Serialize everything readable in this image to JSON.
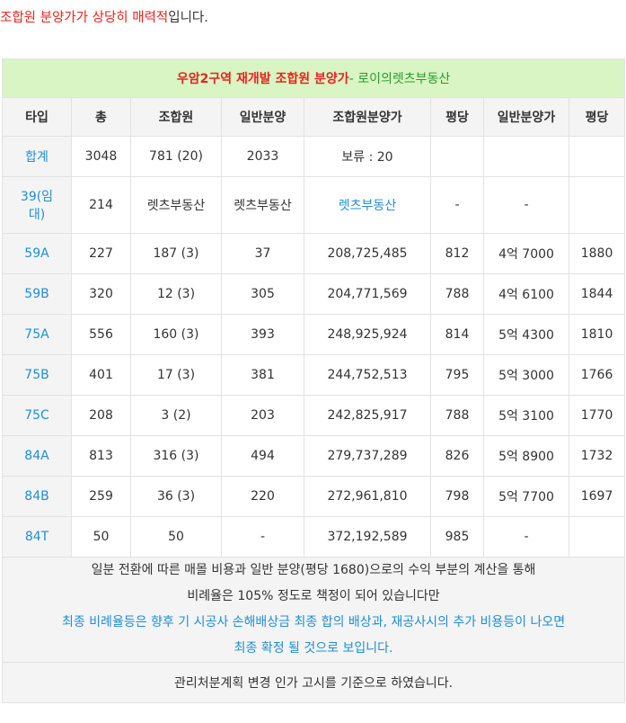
{
  "intro": {
    "part1": "조합원 분양가가 상당히 매력적",
    "part2": "입니다."
  },
  "table": {
    "title_main": "우암2구역 재개발 조합원 분양가",
    "title_sub": "- 로이의렛츠부동산",
    "headers": [
      "타입",
      "총",
      "조합원",
      "일반분양",
      "조합원분양가",
      "평당",
      "일반분양가",
      "평당"
    ],
    "rows": [
      [
        "합계",
        "3048",
        "781 (20)",
        "2033",
        "보류 : 20",
        "",
        "",
        ""
      ],
      [
        "39(임대)",
        "214",
        "렛츠부동산",
        "렛츠부동산",
        "렛츠부동산",
        "-",
        "-",
        ""
      ],
      [
        "59A",
        "227",
        "187 (3)",
        "37",
        "208,725,485",
        "812",
        "4억 7000",
        "1880"
      ],
      [
        "59B",
        "320",
        "12 (3)",
        "305",
        "204,771,569",
        "788",
        "4억 6100",
        "1844"
      ],
      [
        "75A",
        "556",
        "160 (3)",
        "393",
        "248,925,924",
        "814",
        "5억 4300",
        "1810"
      ],
      [
        "75B",
        "401",
        "17 (3)",
        "381",
        "244,752,513",
        "795",
        "5억 3000",
        "1766"
      ],
      [
        "75C",
        "208",
        "3 (2)",
        "203",
        "242,825,917",
        "788",
        "5억 3100",
        "1770"
      ],
      [
        "84A",
        "813",
        "316 (3)",
        "494",
        "279,737,289",
        "826",
        "5억 8900",
        "1732"
      ],
      [
        "84B",
        "259",
        "36 (3)",
        "220",
        "272,961,810",
        "798",
        "5억 7700",
        "1697"
      ],
      [
        "84T",
        "50",
        "50",
        "-",
        "372,192,589",
        "985",
        "-",
        ""
      ]
    ],
    "note_line1": "일분 전환에 따른 매몰 비용과 일반 분양(평당 1680)으로의 수익 부분의 계산을 통해",
    "note_line2": "비례율은 105% 정도로 책정이 되어 있습니다만",
    "note_line3": "최종 비례율등은 향후 기 시공사 손해배상금 최종 합의 배상과, 재공사시의 추가 비용등이 나오면",
    "note_line4": "최종 확정 될 것으로 보입니다.",
    "footer": "관리처분계획 변경 인가 고시를 기준으로 하였습니다."
  },
  "colors": {
    "title_bg": "#d8f5c3",
    "accent_blue": "#1f8ed8",
    "accent_red": "#e8231f",
    "accent_green": "#2a9a2a"
  }
}
